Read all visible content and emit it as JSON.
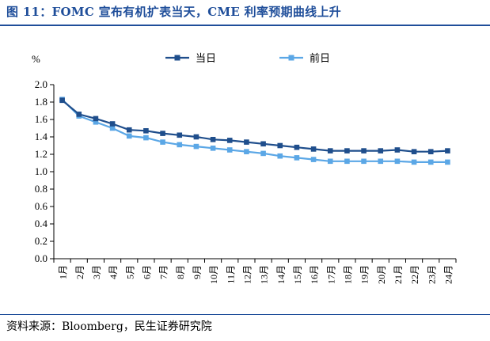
{
  "title": "图 11：FOMC 宣布有机扩表当天，CME 利率预期曲线上升",
  "source": "资料来源：Bloomberg，民生证券研究院",
  "chart_data": {
    "type": "line",
    "ylabel": "%",
    "ylim": [
      0.0,
      2.0
    ],
    "ytick_step": 0.2,
    "categories": [
      "1月",
      "2月",
      "3月",
      "4月",
      "5月",
      "6月",
      "7月",
      "8月",
      "9月",
      "10月",
      "11月",
      "12月",
      "13月",
      "14月",
      "15月",
      "16月",
      "17月",
      "18月",
      "19月",
      "20月",
      "21月",
      "22月",
      "23月",
      "24月"
    ],
    "legend_position": "top",
    "series": [
      {
        "name": "当日",
        "color": "#1f4e8c",
        "marker": "square",
        "values": [
          1.82,
          1.66,
          1.61,
          1.55,
          1.48,
          1.47,
          1.44,
          1.42,
          1.4,
          1.37,
          1.36,
          1.34,
          1.32,
          1.3,
          1.28,
          1.26,
          1.24,
          1.24,
          1.24,
          1.24,
          1.25,
          1.23,
          1.23,
          1.24
        ]
      },
      {
        "name": "前日",
        "color": "#5ba7e6",
        "marker": "square",
        "values": [
          1.83,
          1.64,
          1.57,
          1.5,
          1.41,
          1.39,
          1.34,
          1.31,
          1.29,
          1.27,
          1.25,
          1.23,
          1.21,
          1.18,
          1.16,
          1.14,
          1.12,
          1.12,
          1.12,
          1.12,
          1.12,
          1.11,
          1.11,
          1.11
        ]
      }
    ]
  }
}
